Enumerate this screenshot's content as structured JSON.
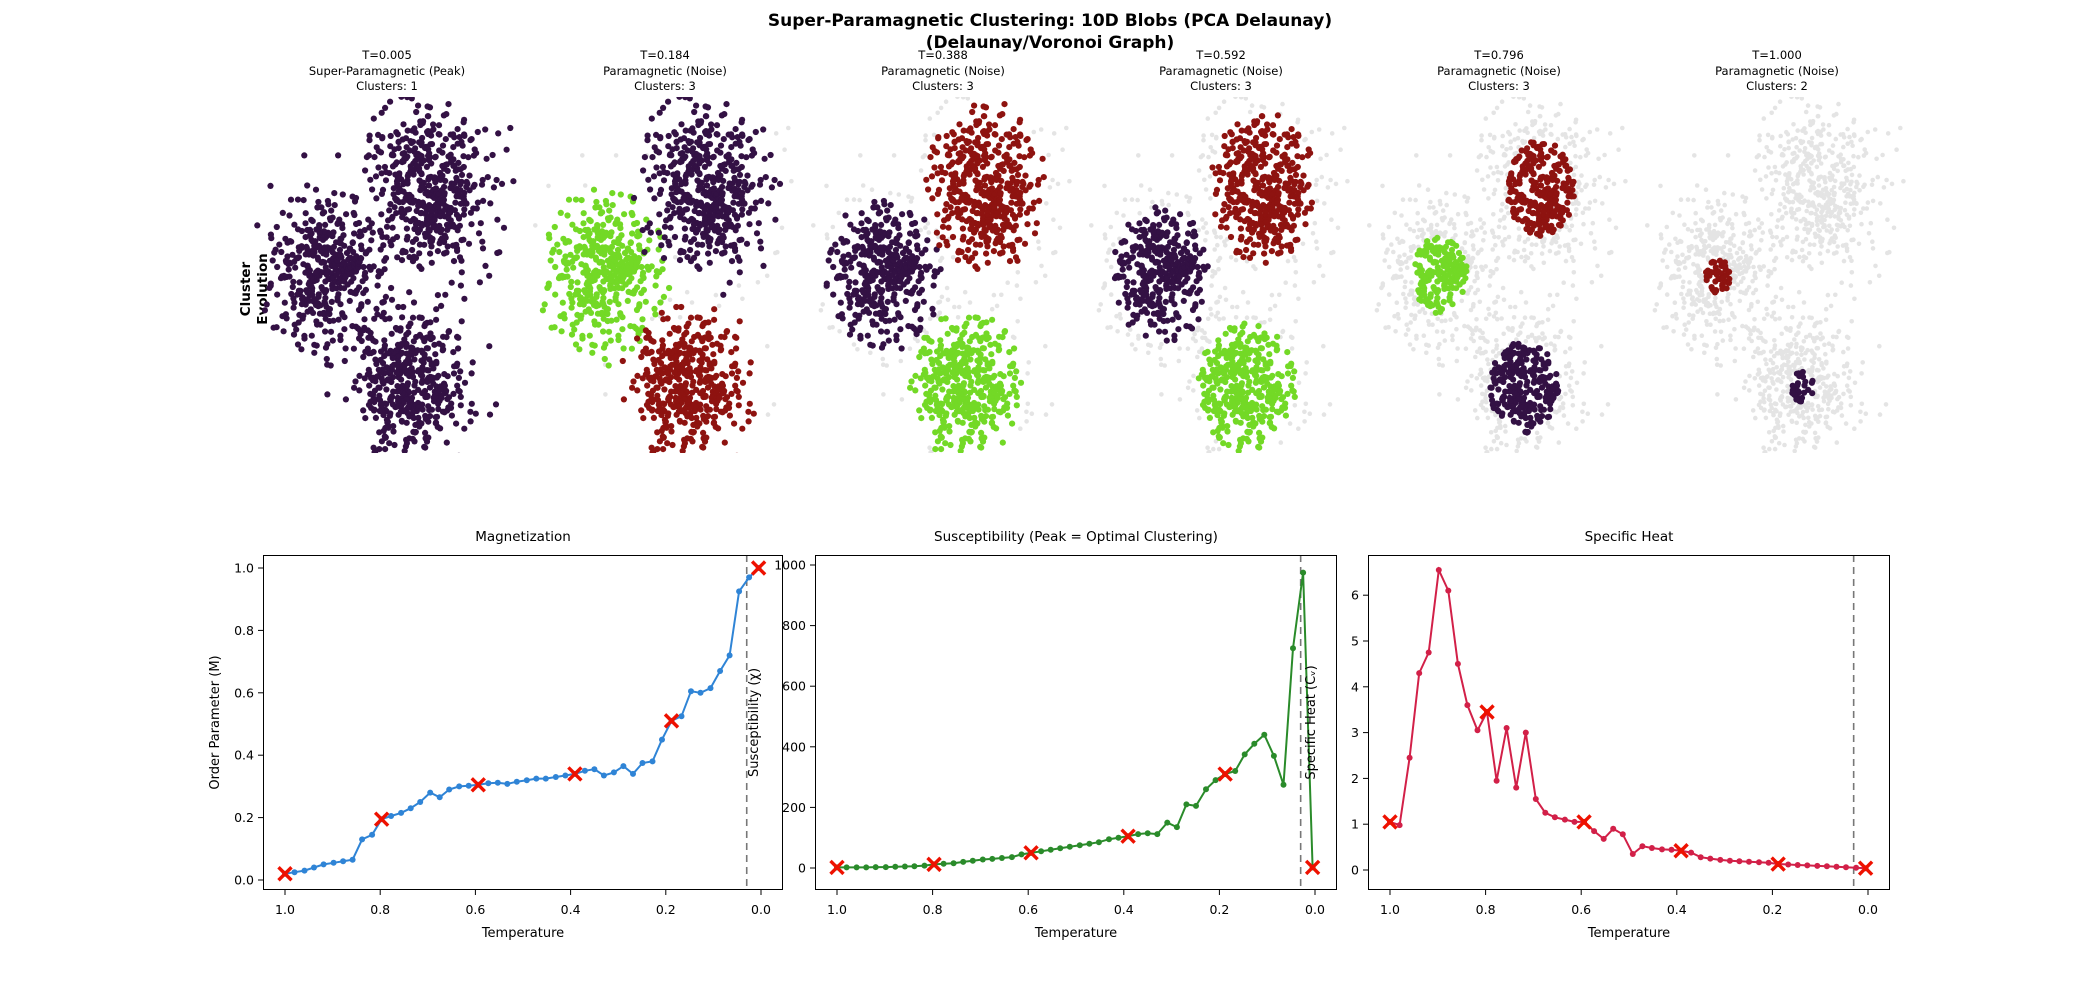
{
  "figure": {
    "suptitle_line1": "Super-Paramagnetic Clustering: 10D Blobs (PCA Delaunay)",
    "suptitle_line2": "(Delaunay/Voronoi Graph)",
    "row_label_line1": "Cluster",
    "row_label_line2": "Evolution"
  },
  "colors": {
    "purple": "#331144",
    "green": "#73d926",
    "darkred": "#8e1310",
    "noise": "#c4c4c4",
    "magnetization_line": "#2f84d6",
    "susceptibility_line": "#2a8b2a",
    "specific_heat_line": "#d22048",
    "marker": "#ee1100",
    "dashed": "#777777",
    "text": "#000000"
  },
  "chart_data": [
    {
      "type": "scatter-grid",
      "description": "Cluster evolution snapshots of the same 10D blob dataset projected by PCA, colored by cluster assignment at six temperatures; gray points are unclustered noise",
      "base_blobs": [
        {
          "id": "left-blob",
          "center": [
            0.28,
            0.5
          ],
          "std": [
            0.1,
            0.105
          ],
          "n": 440
        },
        {
          "id": "top-blob",
          "center": [
            0.655,
            0.255
          ],
          "std": [
            0.105,
            0.115
          ],
          "n": 500
        },
        {
          "id": "bottom-blob",
          "center": [
            0.595,
            0.815
          ],
          "std": [
            0.1,
            0.1
          ],
          "n": 460
        }
      ],
      "panels": [
        {
          "t": 0.005,
          "t_label": "T=0.005",
          "phase_label": "Super-Paramagnetic (Peak)",
          "clusters_label": "Clusters: 1",
          "assign": [
            {
              "color_key": "purple",
              "keep": 1.0
            },
            {
              "color_key": "purple",
              "keep": 1.0
            },
            {
              "color_key": "purple",
              "keep": 1.0
            }
          ]
        },
        {
          "t": 0.184,
          "t_label": "T=0.184",
          "phase_label": "Paramagnetic (Noise)",
          "clusters_label": "Clusters: 3",
          "assign": [
            {
              "color_key": "green",
              "keep": 0.97
            },
            {
              "color_key": "purple",
              "keep": 0.97
            },
            {
              "color_key": "darkred",
              "keep": 0.97
            }
          ]
        },
        {
          "t": 0.388,
          "t_label": "T=0.388",
          "phase_label": "Paramagnetic (Noise)",
          "clusters_label": "Clusters: 3",
          "assign": [
            {
              "color_key": "purple",
              "keep": 0.9
            },
            {
              "color_key": "darkred",
              "keep": 0.9
            },
            {
              "color_key": "green",
              "keep": 0.9
            }
          ]
        },
        {
          "t": 0.592,
          "t_label": "T=0.592",
          "phase_label": "Paramagnetic (Noise)",
          "clusters_label": "Clusters: 3",
          "assign": [
            {
              "color_key": "purple",
              "keep": 0.8
            },
            {
              "color_key": "darkred",
              "keep": 0.82
            },
            {
              "color_key": "green",
              "keep": 0.82
            }
          ]
        },
        {
          "t": 0.796,
          "t_label": "T=0.796",
          "phase_label": "Paramagnetic (Noise)",
          "clusters_label": "Clusters: 3",
          "assign": [
            {
              "color_key": "green",
              "keep": 0.4
            },
            {
              "color_key": "darkred",
              "keep": 0.5
            },
            {
              "color_key": "purple",
              "keep": 0.55
            }
          ]
        },
        {
          "t": 1.0,
          "t_label": "T=1.000",
          "phase_label": "Paramagnetic (Noise)",
          "clusters_label": "Clusters: 2",
          "assign": [
            {
              "color_key": "darkred",
              "keep": 0.1
            },
            {
              "color_key": "",
              "keep": 0.0
            },
            {
              "color_key": "purple",
              "keep": 0.07
            }
          ]
        }
      ]
    },
    {
      "type": "line",
      "id": "magnetization",
      "title": "Magnetization",
      "xlabel": "Temperature",
      "ylabel": "Order Parameter (M)",
      "line_color_key": "magnetization_line",
      "x_tick_labels": [
        "1.0",
        "0.8",
        "0.6",
        "0.4",
        "0.2",
        "0.0"
      ],
      "x_tick_values": [
        1.0,
        0.8,
        0.6,
        0.4,
        0.2,
        0.0
      ],
      "y_tick_labels": [
        "0.0",
        "0.2",
        "0.4",
        "0.6",
        "0.8",
        "1.0"
      ],
      "y_tick_values": [
        0,
        0.2,
        0.4,
        0.6,
        0.8,
        1.0
      ],
      "ylim": [
        0,
        1.0
      ],
      "x_axis_reversed": true,
      "dashed_x": 0.03,
      "x": [
        1.0,
        0.98,
        0.959,
        0.939,
        0.919,
        0.898,
        0.878,
        0.858,
        0.838,
        0.817,
        0.797,
        0.777,
        0.756,
        0.736,
        0.716,
        0.695,
        0.675,
        0.655,
        0.634,
        0.614,
        0.594,
        0.573,
        0.553,
        0.533,
        0.513,
        0.492,
        0.472,
        0.452,
        0.431,
        0.411,
        0.391,
        0.37,
        0.35,
        0.33,
        0.309,
        0.289,
        0.269,
        0.249,
        0.228,
        0.208,
        0.188,
        0.167,
        0.147,
        0.127,
        0.106,
        0.086,
        0.066,
        0.046,
        0.025,
        0.005
      ],
      "y": [
        0.02,
        0.025,
        0.03,
        0.04,
        0.05,
        0.055,
        0.06,
        0.065,
        0.13,
        0.145,
        0.195,
        0.205,
        0.215,
        0.23,
        0.25,
        0.28,
        0.265,
        0.29,
        0.3,
        0.302,
        0.305,
        0.31,
        0.312,
        0.308,
        0.315,
        0.32,
        0.325,
        0.325,
        0.33,
        0.335,
        0.34,
        0.35,
        0.355,
        0.335,
        0.345,
        0.365,
        0.34,
        0.375,
        0.38,
        0.45,
        0.51,
        0.525,
        0.605,
        0.6,
        0.615,
        0.67,
        0.72,
        0.925,
        0.97,
        1.0
      ],
      "marker_indices": [
        0,
        10,
        20,
        30,
        40,
        49
      ]
    },
    {
      "type": "line",
      "id": "susceptibility",
      "title": "Susceptibility (Peak = Optimal Clustering)",
      "xlabel": "Temperature",
      "ylabel": "Susceptibility (χ)",
      "line_color_key": "susceptibility_line",
      "x_tick_labels": [
        "1.0",
        "0.8",
        "0.6",
        "0.4",
        "0.2",
        "0.0"
      ],
      "x_tick_values": [
        1.0,
        0.8,
        0.6,
        0.4,
        0.2,
        0.0
      ],
      "y_tick_labels": [
        "0",
        "200",
        "400",
        "600",
        "800",
        "1000"
      ],
      "y_tick_values": [
        0,
        200,
        400,
        600,
        800,
        1000
      ],
      "ylim": [
        0,
        1000
      ],
      "x_axis_reversed": true,
      "dashed_x": 0.03,
      "x": [
        1.0,
        0.98,
        0.959,
        0.939,
        0.919,
        0.898,
        0.878,
        0.858,
        0.838,
        0.817,
        0.797,
        0.777,
        0.756,
        0.736,
        0.716,
        0.695,
        0.675,
        0.655,
        0.634,
        0.614,
        0.594,
        0.573,
        0.553,
        0.533,
        0.513,
        0.492,
        0.472,
        0.452,
        0.431,
        0.411,
        0.391,
        0.37,
        0.35,
        0.33,
        0.309,
        0.289,
        0.269,
        0.249,
        0.228,
        0.208,
        0.188,
        0.167,
        0.147,
        0.127,
        0.106,
        0.086,
        0.066,
        0.046,
        0.025,
        0.005
      ],
      "y": [
        2,
        2,
        2,
        2,
        3,
        3,
        4,
        5,
        6,
        8,
        12,
        14,
        16,
        20,
        24,
        28,
        30,
        33,
        36,
        45,
        50,
        55,
        60,
        65,
        70,
        75,
        80,
        85,
        95,
        100,
        105,
        112,
        115,
        112,
        150,
        135,
        210,
        205,
        260,
        290,
        310,
        320,
        375,
        410,
        440,
        370,
        275,
        725,
        975,
        2
      ],
      "marker_indices": [
        0,
        10,
        20,
        30,
        40,
        49
      ]
    },
    {
      "type": "line",
      "id": "specific-heat",
      "title": "Specific Heat",
      "xlabel": "Temperature",
      "ylabel": "Specific Heat (Cᵥ)",
      "line_color_key": "specific_heat_line",
      "x_tick_labels": [
        "1.0",
        "0.8",
        "0.6",
        "0.4",
        "0.2",
        "0.0"
      ],
      "x_tick_values": [
        1.0,
        0.8,
        0.6,
        0.4,
        0.2,
        0.0
      ],
      "y_tick_labels": [
        "0",
        "1",
        "2",
        "3",
        "4",
        "5",
        "6"
      ],
      "y_tick_values": [
        0,
        1,
        2,
        3,
        4,
        5,
        6
      ],
      "ylim": [
        0,
        6.6
      ],
      "x_axis_reversed": true,
      "dashed_x": 0.03,
      "x": [
        1.0,
        0.98,
        0.959,
        0.939,
        0.919,
        0.898,
        0.878,
        0.858,
        0.838,
        0.817,
        0.797,
        0.777,
        0.756,
        0.736,
        0.716,
        0.695,
        0.675,
        0.655,
        0.634,
        0.614,
        0.594,
        0.573,
        0.553,
        0.533,
        0.513,
        0.492,
        0.472,
        0.452,
        0.431,
        0.411,
        0.391,
        0.37,
        0.35,
        0.33,
        0.309,
        0.289,
        0.269,
        0.249,
        0.228,
        0.208,
        0.188,
        0.167,
        0.147,
        0.127,
        0.106,
        0.086,
        0.066,
        0.046,
        0.025,
        0.005
      ],
      "y": [
        1.05,
        0.98,
        2.45,
        4.3,
        4.75,
        6.55,
        6.1,
        4.5,
        3.6,
        3.05,
        3.45,
        1.95,
        3.1,
        1.8,
        3.0,
        1.55,
        1.25,
        1.15,
        1.1,
        1.05,
        1.05,
        0.85,
        0.68,
        0.9,
        0.78,
        0.35,
        0.52,
        0.48,
        0.45,
        0.44,
        0.42,
        0.38,
        0.28,
        0.25,
        0.22,
        0.2,
        0.19,
        0.18,
        0.17,
        0.16,
        0.13,
        0.12,
        0.11,
        0.1,
        0.09,
        0.08,
        0.07,
        0.06,
        0.05,
        0.04
      ],
      "marker_indices": [
        0,
        10,
        20,
        30,
        40,
        49
      ]
    }
  ]
}
